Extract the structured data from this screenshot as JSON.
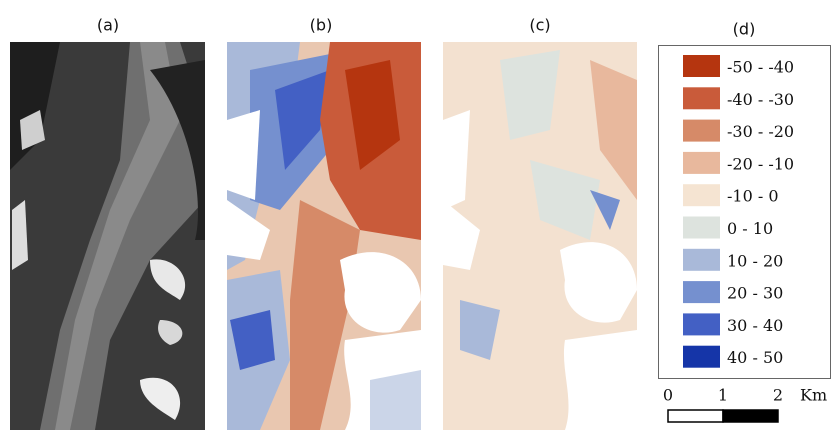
{
  "panels": [
    {
      "label": "(a)"
    },
    {
      "label": "(b)"
    },
    {
      "label": "(c)"
    }
  ],
  "legend": {
    "title": "(d)",
    "items": [
      {
        "label": "-50 - -40",
        "color": "#b5350f"
      },
      {
        "label": "-40 - -30",
        "color": "#c95b3a"
      },
      {
        "label": "-30 - -20",
        "color": "#d68a68"
      },
      {
        "label": "-20 - -10",
        "color": "#e8b89d"
      },
      {
        "label": "-10 - 0",
        "color": "#f5e4d2"
      },
      {
        "label": "0 - 10",
        "color": "#dde3de"
      },
      {
        "label": "10 - 20",
        "color": "#a9b9d9"
      },
      {
        "label": "20 - 30",
        "color": "#7590cf"
      },
      {
        "label": "30 - 40",
        "color": "#4360c4"
      },
      {
        "label": "40 - 50",
        "color": "#1535a8"
      }
    ]
  },
  "scale_bar": {
    "ticks": [
      "0",
      "1",
      "2"
    ],
    "unit": "Km"
  }
}
